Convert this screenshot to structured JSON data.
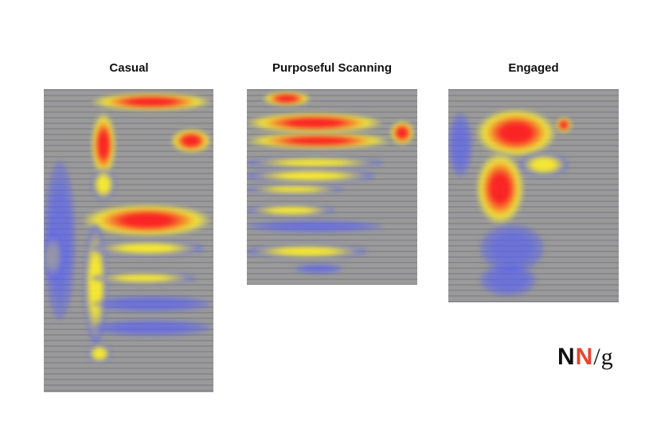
{
  "panels": [
    {
      "title": "Casual",
      "heat_colors": [
        "#ff2020",
        "#ffff30",
        "#5060ff"
      ]
    },
    {
      "title": "Purposeful Scanning"
    },
    {
      "title": "Engaged"
    }
  ],
  "logo": {
    "n1": "N",
    "n2": "N",
    "slash": "/",
    "g": "g",
    "accent": "#e8452c"
  }
}
